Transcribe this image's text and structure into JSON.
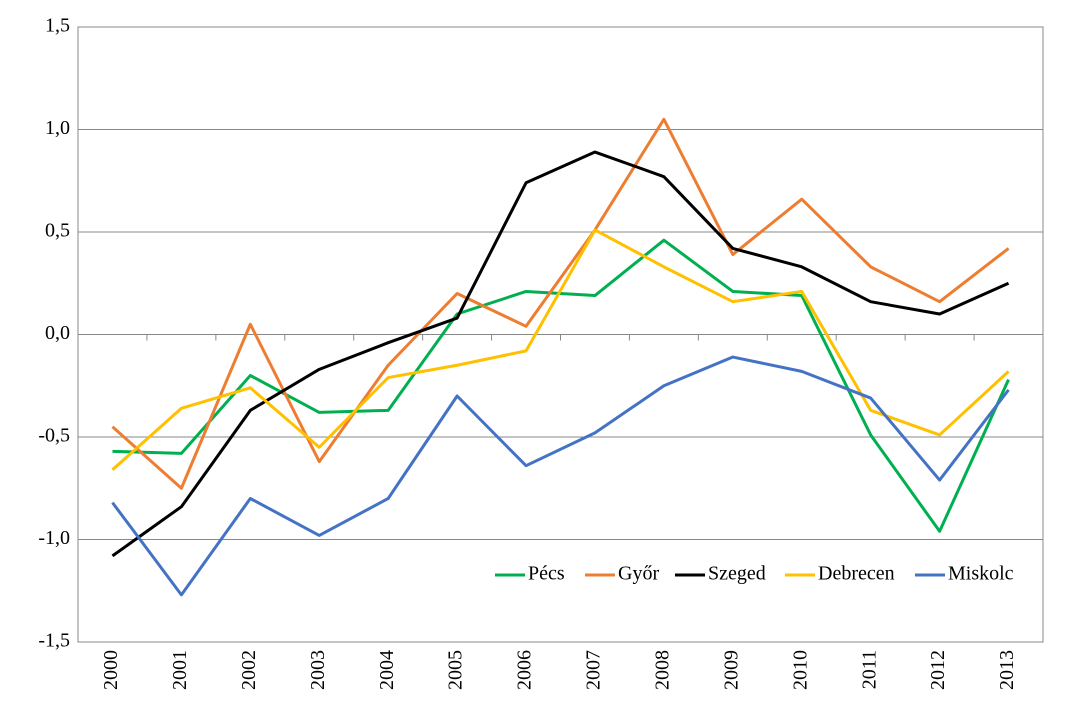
{
  "chart_data": {
    "type": "line",
    "categories": [
      "2000",
      "2001",
      "2002",
      "2003",
      "2004",
      "2005",
      "2006",
      "2007",
      "2008",
      "2009",
      "2010",
      "2011",
      "2012",
      "2013"
    ],
    "series": [
      {
        "name": "Pécs",
        "color": "#00b050",
        "values": [
          -0.57,
          -0.58,
          -0.2,
          -0.38,
          -0.37,
          0.1,
          0.21,
          0.19,
          0.46,
          0.21,
          0.19,
          -0.49,
          -0.96,
          -0.22
        ]
      },
      {
        "name": "Győr",
        "color": "#ed7d31",
        "values": [
          -0.45,
          -0.75,
          0.05,
          -0.62,
          -0.15,
          0.2,
          0.04,
          0.51,
          1.05,
          0.39,
          0.66,
          0.33,
          0.16,
          0.42
        ]
      },
      {
        "name": "Szeged",
        "color": "#000000",
        "values": [
          -1.08,
          -0.84,
          -0.37,
          -0.17,
          -0.04,
          0.08,
          0.74,
          0.89,
          0.77,
          0.42,
          0.33,
          0.16,
          0.1,
          0.25
        ]
      },
      {
        "name": "Debrecen",
        "color": "#ffc000",
        "values": [
          -0.66,
          -0.36,
          -0.26,
          -0.55,
          -0.21,
          -0.15,
          -0.08,
          0.51,
          0.33,
          0.16,
          0.21,
          -0.37,
          -0.49,
          -0.18
        ]
      },
      {
        "name": "Miskolc",
        "color": "#4472c4",
        "values": [
          -0.82,
          -1.27,
          -0.8,
          -0.98,
          -0.8,
          -0.3,
          -0.64,
          -0.48,
          -0.25,
          -0.11,
          -0.18,
          -0.31,
          -0.71,
          -0.27
        ]
      }
    ],
    "ylim": [
      -1.5,
      1.5
    ],
    "yticks": [
      {
        "value": -1.5,
        "label": "-1,5"
      },
      {
        "value": -1,
        "label": "-1,0"
      },
      {
        "value": -0.5,
        "label": "-0,5"
      },
      {
        "value": 0,
        "label": "0,0"
      },
      {
        "value": 0.5,
        "label": "0,5"
      },
      {
        "value": 1,
        "label": "1,0"
      },
      {
        "value": 1.5,
        "label": "1,5"
      }
    ],
    "grid": true,
    "legend": "lower right"
  }
}
